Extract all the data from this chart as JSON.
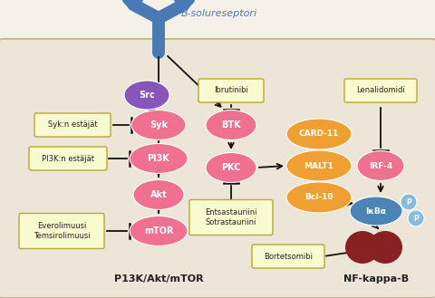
{
  "bg_color": "#f5f0e8",
  "cell_bg": "#ede5d8",
  "pink_color": "#f07090",
  "orange_color": "#f0a030",
  "purple_color": "#8855bb",
  "blue_receptor_color": "#4a7ab5",
  "blue_node_color": "#4a85b5",
  "light_blue_color": "#88bbdd",
  "dark_red_color": "#882222",
  "yellow_box_color": "#fafad0",
  "yellow_box_edge": "#b8a830",
  "text_color": "#222222",
  "arrow_color": "#111111",
  "title": "B-solureseptori",
  "bottom_label_left": "P13K/Akt/mTOR",
  "bottom_label_right": "NF-kappa-B"
}
